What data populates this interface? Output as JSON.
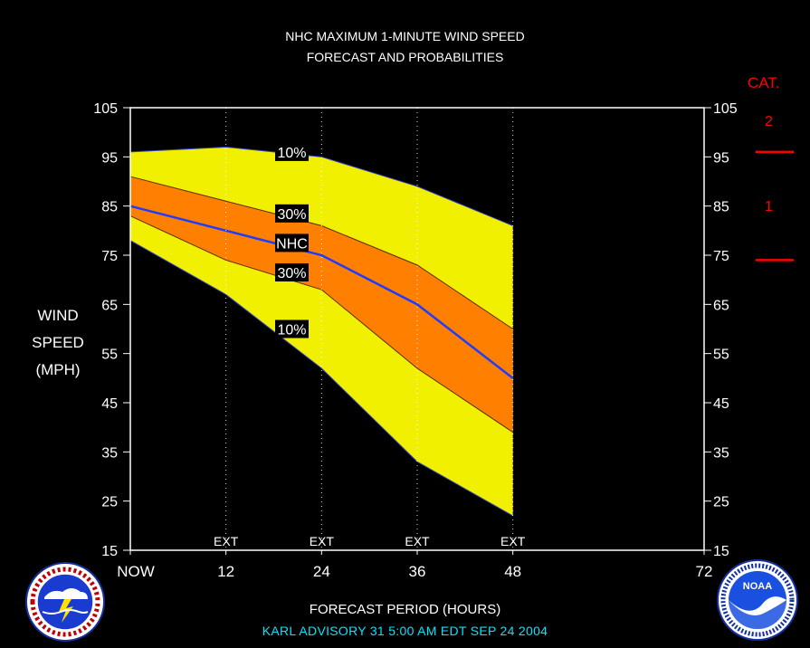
{
  "title_line1": "NHC MAXIMUM 1-MINUTE WIND SPEED",
  "title_line2": "FORECAST AND PROBABILITIES",
  "ylabel": [
    "WIND",
    "SPEED",
    "(MPH)"
  ],
  "xlabel": "FORECAST PERIOD (HOURS)",
  "advisory": "KARL   ADVISORY  31  5:00 AM  EDT  SEP  24  2004",
  "category_header": "CAT.",
  "categories": [
    "2",
    "1"
  ],
  "colors": {
    "background": "#000000",
    "outer_band": "#f0f000",
    "inner_band": "#ff8000",
    "forecast_line": "#1f3cff",
    "category_marks": "#ff0000",
    "advisory_text": "#00e5ff"
  },
  "logos": {
    "left": "noaa-weather-service-logo",
    "right": "noaa-logo"
  },
  "chart_data": {
    "type": "area",
    "xlabel": "FORECAST PERIOD (HOURS)",
    "ylabel": "WIND SPEED (MPH)",
    "xlim": [
      0,
      72
    ],
    "ylim": [
      15,
      105
    ],
    "x_ticks": [
      {
        "x": 0,
        "label": "NOW"
      },
      {
        "x": 12,
        "label": "12"
      },
      {
        "x": 24,
        "label": "24"
      },
      {
        "x": 36,
        "label": "36"
      },
      {
        "x": 48,
        "label": "48"
      },
      {
        "x": 72,
        "label": "72"
      }
    ],
    "y_ticks": [
      15,
      25,
      35,
      45,
      55,
      65,
      75,
      85,
      95,
      105
    ],
    "ext_marks": [
      {
        "x": 12,
        "label": "EXT"
      },
      {
        "x": 24,
        "label": "EXT"
      },
      {
        "x": 36,
        "label": "EXT"
      },
      {
        "x": 48,
        "label": "EXT"
      }
    ],
    "x": [
      0,
      12,
      24,
      36,
      48
    ],
    "series": [
      {
        "name": "10%",
        "values": [
          96,
          97,
          95,
          89,
          81
        ]
      },
      {
        "name": "30%",
        "values": [
          91,
          86,
          81,
          73,
          60
        ]
      },
      {
        "name": "NHC",
        "values": [
          85,
          80,
          75,
          65,
          50
        ]
      },
      {
        "name": "30%",
        "values": [
          83,
          74,
          68,
          52,
          39
        ]
      },
      {
        "name": "10%",
        "values": [
          78,
          67,
          52,
          33,
          22
        ]
      }
    ],
    "band_labels": [
      {
        "text": "10%",
        "x": 18,
        "y": 96
      },
      {
        "text": "30%",
        "x": 18,
        "y": 83.5
      },
      {
        "text": "NHC",
        "x": 18,
        "y": 77.5
      },
      {
        "text": "30%",
        "x": 18,
        "y": 71.5
      },
      {
        "text": "10%",
        "x": 18,
        "y": 60
      }
    ],
    "category_thresholds": [
      96,
      74
    ]
  }
}
